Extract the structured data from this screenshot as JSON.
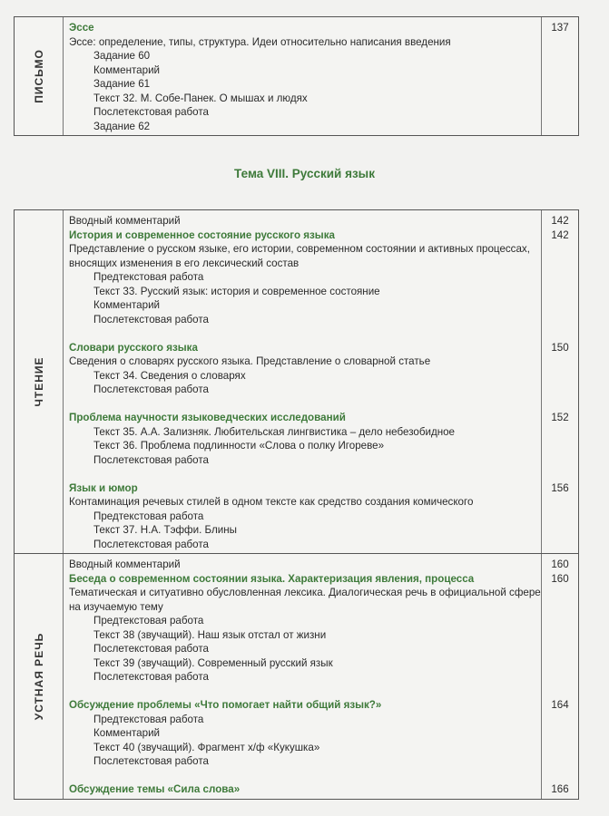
{
  "theme_title": "Тема VIII. Русский язык",
  "tables": [
    {
      "sections": [
        {
          "label": "ПИСЬМО",
          "lines": [
            {
              "type": "h",
              "text": "Эссе",
              "page": "137"
            },
            {
              "type": "t",
              "text": "Эссе: определение, типы, структура. Идеи относительно написания введения"
            },
            {
              "type": "i",
              "text": "Задание 60"
            },
            {
              "type": "i",
              "text": "Комментарий"
            },
            {
              "type": "i",
              "text": "Задание 61"
            },
            {
              "type": "i",
              "text": "Текст 32. М. Собе-Панек. О мышах и людях"
            },
            {
              "type": "i",
              "text": "Послетекстовая работа"
            },
            {
              "type": "i",
              "text": "Задание 62"
            }
          ]
        }
      ]
    },
    {
      "sections": [
        {
          "label": "ЧТЕНИЕ",
          "lines": [
            {
              "type": "t",
              "text": "Вводный комментарий",
              "page": "142"
            },
            {
              "type": "h",
              "text": "История и  современное состояние русского языка",
              "page": "142"
            },
            {
              "type": "t",
              "text": "Представление о русском языке, его истории, современном состоянии и активных процессах,"
            },
            {
              "type": "t",
              "text": "вносящих изменения в его лексический состав"
            },
            {
              "type": "i",
              "text": "Предтекстовая работа"
            },
            {
              "type": "i",
              "text": "Текст 33. Русский язык: история и современное состояние"
            },
            {
              "type": "i",
              "text": "Комментарий"
            },
            {
              "type": "i",
              "text": "Послетекстовая работа"
            },
            {
              "type": "gap",
              "text": ""
            },
            {
              "type": "h",
              "text": "Словари русского языка",
              "page": "150"
            },
            {
              "type": "t",
              "text": "Сведения о словарях русского языка. Представление о словарной статье"
            },
            {
              "type": "i",
              "text": "Текст 34. Сведения о словарях"
            },
            {
              "type": "i",
              "text": "Послетекстовая работа"
            },
            {
              "type": "gap",
              "text": ""
            },
            {
              "type": "h",
              "text": "Проблема научности языковедческих исследований",
              "page": "152"
            },
            {
              "type": "i",
              "text": "Текст 35. А.А. Зализняк. Любительская лингвистика – дело небезобидное"
            },
            {
              "type": "i",
              "text": "Текст 36. Проблема подлинности «Слова о полку Игореве»"
            },
            {
              "type": "i",
              "text": "Послетекстовая работа"
            },
            {
              "type": "gap",
              "text": ""
            },
            {
              "type": "h",
              "text": "Язык и юмор",
              "page": "156"
            },
            {
              "type": "t",
              "text": "Контаминация речевых стилей в одном тексте как средство создания комического"
            },
            {
              "type": "i",
              "text": "Предтекстовая работа"
            },
            {
              "type": "i",
              "text": "Текст 37. Н.А. Тэффи. Блины"
            },
            {
              "type": "i",
              "text": "Послетекстовая работа"
            }
          ]
        },
        {
          "label": "УСТНАЯ РЕЧЬ",
          "lines": [
            {
              "type": "t",
              "text": "Вводный комментарий",
              "page": "160"
            },
            {
              "type": "h",
              "text": "Беседа о современном состоянии языка. Характеризация явления, процесса",
              "page": "160"
            },
            {
              "type": "t",
              "text": "Тематическая и ситуативно обусловленная лексика. Диалогическая речь в официальной сфере"
            },
            {
              "type": "t",
              "text": "на изучаемую тему"
            },
            {
              "type": "i",
              "text": "Предтекстовая работа"
            },
            {
              "type": "i",
              "text": "Текст 38 (звучащий). Наш язык отстал от жизни"
            },
            {
              "type": "i",
              "text": "Послетекстовая работа"
            },
            {
              "type": "i",
              "text": "Текст 39 (звучащий). Современный русский язык"
            },
            {
              "type": "i",
              "text": "Послетекстовая работа"
            },
            {
              "type": "gap",
              "text": ""
            },
            {
              "type": "h",
              "text": "Обсуждение проблемы «Что помогает найти общий язык?»",
              "page": "164"
            },
            {
              "type": "i",
              "text": "Предтекстовая работа"
            },
            {
              "type": "i",
              "text": "Комментарий"
            },
            {
              "type": "i",
              "text": "Текст 40 (звучащий). Фрагмент х/ф «Кукушка»"
            },
            {
              "type": "i",
              "text": "Послетекстовая работа"
            },
            {
              "type": "gap",
              "text": ""
            },
            {
              "type": "h",
              "text": "Обсуждение темы «Сила слова»",
              "page": "166"
            }
          ]
        }
      ]
    }
  ]
}
